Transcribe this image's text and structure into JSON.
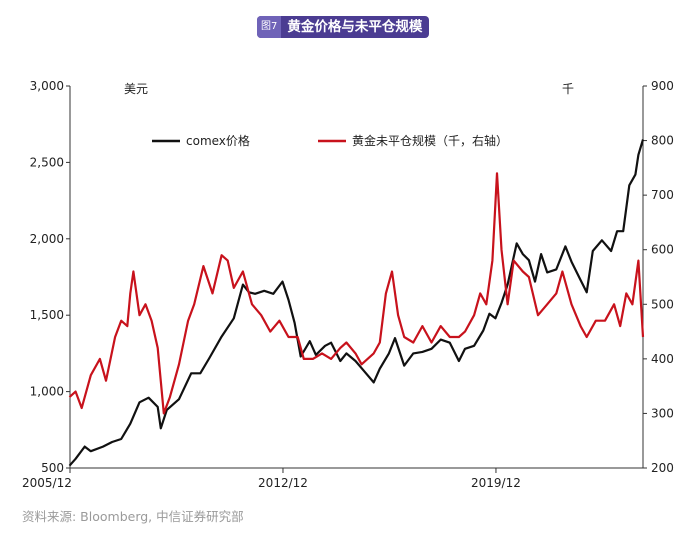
{
  "figure": {
    "number": "图7",
    "title": "黄金价格与未平仓规模"
  },
  "source": "资料来源: Bloomberg, 中信证券研究部",
  "colors": {
    "title_bg": "#4b3c92",
    "number_bg": "#6f63b8",
    "price": "#111111",
    "oi": "#c8121c"
  },
  "chart_data": {
    "type": "line",
    "left_axis": {
      "unit": "美元",
      "min": 500,
      "max": 3000,
      "ticks": [
        500,
        1000,
        1500,
        2000,
        2500,
        3000
      ],
      "tick_labels": [
        "500",
        "1,000",
        "1,500",
        "2,000",
        "2,500",
        "3,000"
      ]
    },
    "right_axis": {
      "unit": "千",
      "min": 200,
      "max": 900,
      "ticks": [
        200,
        300,
        400,
        500,
        600,
        700,
        800,
        900
      ],
      "tick_labels": [
        "200",
        "300",
        "400",
        "500",
        "600",
        "700",
        "800",
        "900"
      ]
    },
    "x_axis": {
      "min": 2005.917,
      "max": 2024.75,
      "ticks": [
        2005.917,
        2012.917,
        2019.917
      ],
      "tick_labels": [
        "2005/12",
        "2012/12",
        "2019/12"
      ]
    },
    "legend_position": "top",
    "series": [
      {
        "name": "comex价格",
        "axis": "left",
        "color": "#111111",
        "points": [
          [
            2005.9,
            515
          ],
          [
            2006.1,
            560
          ],
          [
            2006.4,
            640
          ],
          [
            2006.6,
            610
          ],
          [
            2007.0,
            640
          ],
          [
            2007.3,
            670
          ],
          [
            2007.6,
            690
          ],
          [
            2007.9,
            790
          ],
          [
            2008.2,
            930
          ],
          [
            2008.5,
            960
          ],
          [
            2008.8,
            900
          ],
          [
            2008.9,
            760
          ],
          [
            2009.1,
            880
          ],
          [
            2009.5,
            950
          ],
          [
            2009.9,
            1120
          ],
          [
            2010.2,
            1120
          ],
          [
            2010.5,
            1220
          ],
          [
            2010.9,
            1360
          ],
          [
            2011.3,
            1480
          ],
          [
            2011.6,
            1700
          ],
          [
            2011.8,
            1650
          ],
          [
            2012.0,
            1640
          ],
          [
            2012.3,
            1660
          ],
          [
            2012.6,
            1640
          ],
          [
            2012.9,
            1720
          ],
          [
            2013.1,
            1600
          ],
          [
            2013.3,
            1450
          ],
          [
            2013.5,
            1230
          ],
          [
            2013.8,
            1330
          ],
          [
            2014.0,
            1240
          ],
          [
            2014.3,
            1300
          ],
          [
            2014.5,
            1320
          ],
          [
            2014.8,
            1200
          ],
          [
            2015.0,
            1250
          ],
          [
            2015.3,
            1200
          ],
          [
            2015.6,
            1130
          ],
          [
            2015.9,
            1060
          ],
          [
            2016.1,
            1150
          ],
          [
            2016.4,
            1250
          ],
          [
            2016.6,
            1350
          ],
          [
            2016.9,
            1170
          ],
          [
            2017.2,
            1250
          ],
          [
            2017.5,
            1260
          ],
          [
            2017.8,
            1280
          ],
          [
            2018.1,
            1340
          ],
          [
            2018.4,
            1320
          ],
          [
            2018.7,
            1200
          ],
          [
            2018.9,
            1280
          ],
          [
            2019.2,
            1300
          ],
          [
            2019.5,
            1400
          ],
          [
            2019.7,
            1510
          ],
          [
            2019.9,
            1480
          ],
          [
            2020.1,
            1580
          ],
          [
            2020.3,
            1700
          ],
          [
            2020.6,
            1970
          ],
          [
            2020.8,
            1900
          ],
          [
            2021.0,
            1860
          ],
          [
            2021.2,
            1720
          ],
          [
            2021.4,
            1900
          ],
          [
            2021.6,
            1780
          ],
          [
            2021.9,
            1800
          ],
          [
            2022.2,
            1950
          ],
          [
            2022.4,
            1850
          ],
          [
            2022.7,
            1730
          ],
          [
            2022.9,
            1650
          ],
          [
            2023.1,
            1920
          ],
          [
            2023.4,
            1990
          ],
          [
            2023.7,
            1920
          ],
          [
            2023.9,
            2050
          ],
          [
            2024.1,
            2050
          ],
          [
            2024.3,
            2350
          ],
          [
            2024.5,
            2420
          ],
          [
            2024.6,
            2550
          ],
          [
            2024.75,
            2650
          ]
        ]
      },
      {
        "name": "黄金未平仓规模（千，右轴）",
        "axis": "right",
        "color": "#c8121c",
        "points": [
          [
            2005.9,
            330
          ],
          [
            2006.1,
            340
          ],
          [
            2006.3,
            310
          ],
          [
            2006.6,
            370
          ],
          [
            2006.9,
            400
          ],
          [
            2007.1,
            360
          ],
          [
            2007.4,
            440
          ],
          [
            2007.6,
            470
          ],
          [
            2007.8,
            460
          ],
          [
            2007.9,
            520
          ],
          [
            2008.0,
            560
          ],
          [
            2008.2,
            480
          ],
          [
            2008.4,
            500
          ],
          [
            2008.6,
            470
          ],
          [
            2008.8,
            420
          ],
          [
            2009.0,
            300
          ],
          [
            2009.2,
            330
          ],
          [
            2009.5,
            390
          ],
          [
            2009.8,
            470
          ],
          [
            2010.0,
            500
          ],
          [
            2010.3,
            570
          ],
          [
            2010.6,
            520
          ],
          [
            2010.9,
            590
          ],
          [
            2011.1,
            580
          ],
          [
            2011.3,
            530
          ],
          [
            2011.6,
            560
          ],
          [
            2011.9,
            500
          ],
          [
            2012.2,
            480
          ],
          [
            2012.5,
            450
          ],
          [
            2012.8,
            470
          ],
          [
            2013.1,
            440
          ],
          [
            2013.4,
            440
          ],
          [
            2013.6,
            400
          ],
          [
            2013.9,
            400
          ],
          [
            2014.2,
            410
          ],
          [
            2014.5,
            400
          ],
          [
            2014.8,
            420
          ],
          [
            2015.0,
            430
          ],
          [
            2015.3,
            410
          ],
          [
            2015.5,
            390
          ],
          [
            2015.9,
            410
          ],
          [
            2016.1,
            430
          ],
          [
            2016.3,
            520
          ],
          [
            2016.5,
            560
          ],
          [
            2016.7,
            480
          ],
          [
            2016.9,
            440
          ],
          [
            2017.2,
            430
          ],
          [
            2017.5,
            460
          ],
          [
            2017.8,
            430
          ],
          [
            2018.1,
            460
          ],
          [
            2018.4,
            440
          ],
          [
            2018.7,
            440
          ],
          [
            2018.9,
            450
          ],
          [
            2019.2,
            480
          ],
          [
            2019.4,
            520
          ],
          [
            2019.6,
            500
          ],
          [
            2019.8,
            580
          ],
          [
            2019.95,
            740
          ],
          [
            2020.1,
            600
          ],
          [
            2020.3,
            500
          ],
          [
            2020.5,
            580
          ],
          [
            2020.8,
            560
          ],
          [
            2021.0,
            550
          ],
          [
            2021.3,
            480
          ],
          [
            2021.6,
            500
          ],
          [
            2021.9,
            520
          ],
          [
            2022.1,
            560
          ],
          [
            2022.4,
            500
          ],
          [
            2022.7,
            460
          ],
          [
            2022.9,
            440
          ],
          [
            2023.2,
            470
          ],
          [
            2023.5,
            470
          ],
          [
            2023.8,
            500
          ],
          [
            2024.0,
            460
          ],
          [
            2024.2,
            520
          ],
          [
            2024.4,
            500
          ],
          [
            2024.6,
            580
          ],
          [
            2024.75,
            440
          ]
        ]
      }
    ]
  }
}
